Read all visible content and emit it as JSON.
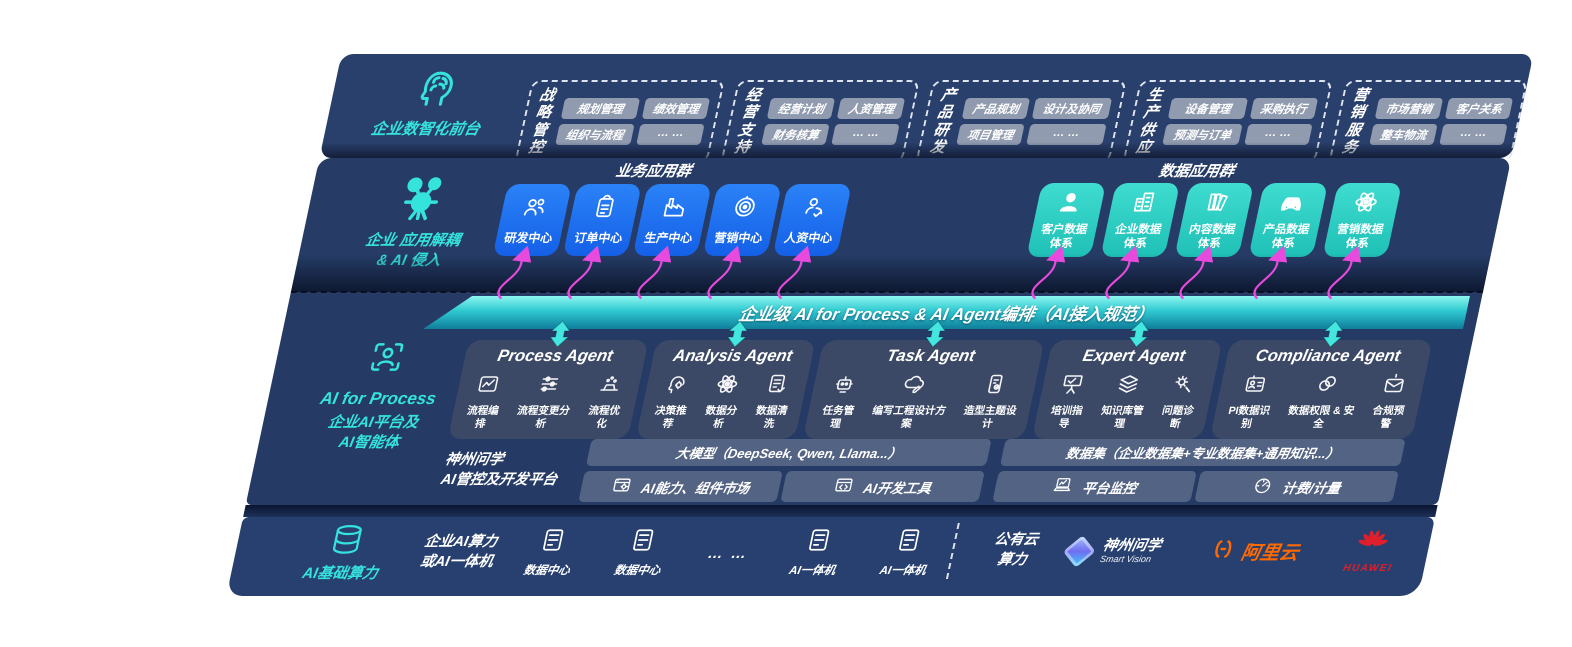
{
  "front_office": {
    "icon": "brain-head-icon",
    "label": "企业数智化前台",
    "groups": [
      {
        "title_lines": [
          "战略",
          "管控"
        ],
        "chips": [
          "规划管理",
          "绩效管理",
          "组织与流程",
          "… …"
        ]
      },
      {
        "title_lines": [
          "经营",
          "支持"
        ],
        "chips": [
          "经营计划",
          "人资管理",
          "财务核算",
          "… …"
        ]
      },
      {
        "title_lines": [
          "产品",
          "研发"
        ],
        "chips": [
          "产品规划",
          "设计及协同",
          "项目管理",
          "… …"
        ]
      },
      {
        "title_lines": [
          "生产",
          "供应"
        ],
        "chips": [
          "设备管理",
          "采购执行",
          "预测与订单",
          "… …"
        ]
      },
      {
        "title_lines": [
          "营销",
          "服务"
        ],
        "chips": [
          "市场营销",
          "客户关系",
          "整车物流",
          "… …"
        ]
      }
    ]
  },
  "decoupling": {
    "icon": "molecule-icon",
    "label_lines": [
      "企业 应用解耦",
      "& AI 侵入"
    ],
    "business_group": {
      "title": "业务应用群",
      "tiles": [
        {
          "label": "研发中心",
          "icon": "team-icon"
        },
        {
          "label": "订单中心",
          "icon": "order-clipboard-icon"
        },
        {
          "label": "生产中心",
          "icon": "factory-icon"
        },
        {
          "label": "营销中心",
          "icon": "target-icon"
        },
        {
          "label": "人资中心",
          "icon": "hr-people-icon"
        }
      ]
    },
    "data_group": {
      "title": "数据应用群",
      "tiles": [
        {
          "label_lines": [
            "客户数据",
            "体系"
          ],
          "icon": "customer-icon"
        },
        {
          "label_lines": [
            "企业数据",
            "体系"
          ],
          "icon": "enterprise-building-icon"
        },
        {
          "label_lines": [
            "内容数据",
            "体系"
          ],
          "icon": "content-books-icon"
        },
        {
          "label_lines": [
            "产品数据",
            "体系"
          ],
          "icon": "product-car-icon"
        },
        {
          "label_lines": [
            "营销数据",
            "体系"
          ],
          "icon": "marketing-atom-icon"
        }
      ]
    }
  },
  "ai_process": {
    "icon": "scan-person-icon",
    "label_en": "AI for Process",
    "label_zh_lines": [
      "企业AI平台及",
      "AI智能体"
    ],
    "bus_bar_label": "企业级 AI for Process & AI Agent编排（AI接入规范）",
    "agents": [
      {
        "title": "Process Agent",
        "items": [
          {
            "label": "流程编排",
            "icon": "workflow-icon"
          },
          {
            "label": "流程变更分析",
            "icon": "sliders-icon"
          },
          {
            "label": "流程优化",
            "icon": "optimize-icon"
          }
        ]
      },
      {
        "title": "Analysis Agent",
        "items": [
          {
            "label": "决策推荐",
            "icon": "decision-head-icon"
          },
          {
            "label": "数据分析",
            "icon": "atom-icon"
          },
          {
            "label": "数据清洗",
            "icon": "clean-doc-icon"
          }
        ]
      },
      {
        "title": "Task Agent",
        "items": [
          {
            "label": "任务管理",
            "icon": "robot-icon"
          },
          {
            "label": "编写工程设计方案",
            "icon": "cloud-design-icon"
          },
          {
            "label": "造型主题设计",
            "icon": "theme-design-icon"
          }
        ]
      },
      {
        "title": "Expert Agent",
        "items": [
          {
            "label": "培训指导",
            "icon": "training-icon"
          },
          {
            "label": "知识库管理",
            "icon": "knowledge-layers-icon"
          },
          {
            "label": "问题诊断",
            "icon": "diagnosis-icon"
          }
        ]
      },
      {
        "title": "Compliance Agent",
        "items": [
          {
            "label": "PI数据识别",
            "icon": "id-card-icon"
          },
          {
            "label": "数据权限 & 安全",
            "icon": "permission-rings-icon"
          },
          {
            "label": "合规预警",
            "icon": "alert-mail-icon"
          }
        ]
      }
    ]
  },
  "platform": {
    "label_lines": [
      "神州问学",
      "AI管控及开发平台"
    ],
    "groups": [
      {
        "header": "大模型（DeepSeek, Qwen, Llama...）",
        "cells": [
          {
            "label": "AI能力、组件市场",
            "icon": "component-market-icon"
          },
          {
            "label": "AI开发工具",
            "icon": "dev-tools-icon"
          }
        ]
      },
      {
        "header": "数据集（企业数据集+专业数据集+通用知识...）",
        "cells": [
          {
            "label": "平台监控",
            "icon": "platform-monitor-icon"
          },
          {
            "label": "计费/计量",
            "icon": "metering-gauge-icon"
          }
        ]
      }
    ]
  },
  "infrastructure": {
    "icon": "database-icon",
    "label": "AI基础算力",
    "compute_label_lines": [
      "企业AI算力",
      "或AI一体机"
    ],
    "nodes": [
      {
        "label": "数据中心",
        "icon": "server-icon"
      },
      {
        "label": "数据中心",
        "icon": "server-icon"
      },
      {
        "label": "… …",
        "icon": ""
      },
      {
        "label": "AI一体机",
        "icon": "server-icon"
      },
      {
        "label": "AI一体机",
        "icon": "server-icon"
      }
    ],
    "public_cloud_lines": [
      "公有云",
      "算力"
    ],
    "vendors": [
      {
        "name": "神州问学",
        "sub": "Smart Vision",
        "icon": "smartvision-diamond-icon"
      },
      {
        "name": "阿里云",
        "icon": "alicloud-icon"
      },
      {
        "name": "HUAWEI",
        "icon": "huawei-flower-icon"
      }
    ]
  },
  "colors": {
    "accent_teal": "#35e3dd",
    "tile_blue": "#1f6ff2",
    "tile_teal": "#2ed3c6",
    "band_navy": "#253a64",
    "bus_bar_teal": "#2fc9d0",
    "arrow_magenta": "#e84ade",
    "alicloud_orange": "#ff6a00",
    "huawei_red": "#e01f2d"
  }
}
